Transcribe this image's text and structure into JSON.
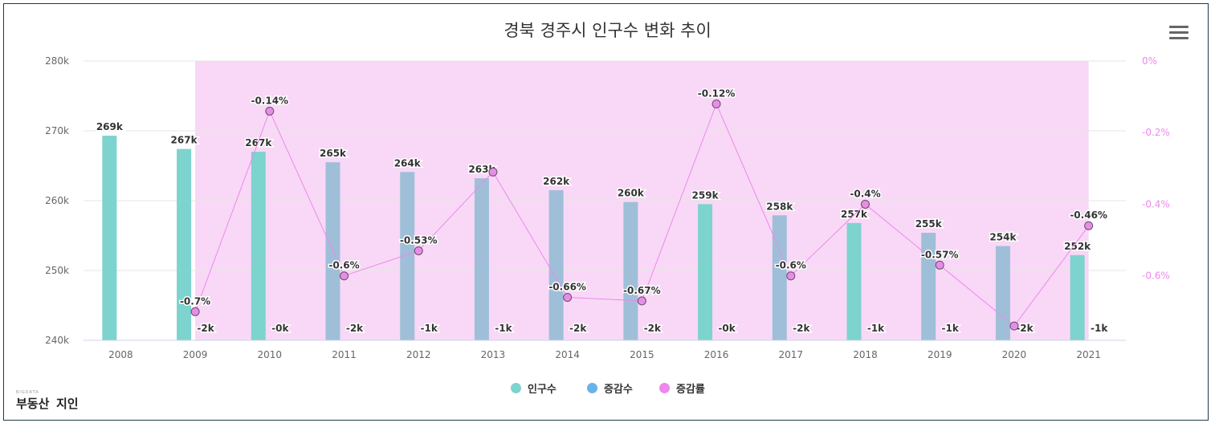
{
  "title": "경북 경주시 인구수 변화 추이",
  "menu_icon": "hamburger-menu-icon",
  "logo": {
    "small": "BIGDATA",
    "text": "부동산",
    "brand": "지인"
  },
  "legend": [
    {
      "label": "인구수",
      "color": "#7dd3cd"
    },
    {
      "label": "증감수",
      "color": "#6ab3e8"
    },
    {
      "label": "증감률",
      "color": "#ee88ee"
    }
  ],
  "chart_data": {
    "type": "bar",
    "title": "경북 경주시 인구수 변화 추이",
    "categories": [
      "2008",
      "2009",
      "2010",
      "2011",
      "2012",
      "2013",
      "2014",
      "2015",
      "2016",
      "2017",
      "2018",
      "2019",
      "2020",
      "2021"
    ],
    "y_left": {
      "ticks": [
        "240k",
        "250k",
        "260k",
        "270k",
        "280k"
      ],
      "range": [
        240,
        280
      ],
      "unit": "k"
    },
    "y_right": {
      "ticks": [
        "0%",
        "-0.2%",
        "-0.4%",
        "-0.6%"
      ],
      "range": [
        -0.78,
        0
      ]
    },
    "grid": true,
    "legend_position": "bottom-center",
    "series": [
      {
        "name": "인구수",
        "type": "bar",
        "values": [
          269.3,
          267.4,
          267.0,
          265.5,
          264.1,
          263.2,
          261.5,
          259.8,
          259.5,
          257.9,
          256.8,
          255.4,
          253.5,
          252.2
        ],
        "labels": [
          "269k",
          "267k",
          "267k",
          "265k",
          "264k",
          "263k",
          "262k",
          "260k",
          "259k",
          "258k",
          "257k",
          "255k",
          "254k",
          "252k"
        ],
        "bar_colors": [
          "#7dd3cd",
          "#7dd3cd",
          "#7dd3cd",
          "#9fbfd8",
          "#9fbfd8",
          "#9fbfd8",
          "#9fbfd8",
          "#9fbfd8",
          "#7dd3cd",
          "#9fbfd8",
          "#7dd3cd",
          "#9fbfd8",
          "#9fbfd8",
          "#7dd3cd"
        ]
      },
      {
        "name": "증감수",
        "type": "bar",
        "labels": [
          null,
          "-2k",
          "-0k",
          "-2k",
          "-1k",
          "-1k",
          "-2k",
          "-2k",
          "-0k",
          "-2k",
          "-1k",
          "-1k",
          "-2k",
          "-1k"
        ]
      },
      {
        "name": "증감률",
        "type": "line",
        "values": [
          null,
          -0.7,
          -0.14,
          -0.6,
          -0.53,
          -0.31,
          -0.66,
          -0.67,
          -0.12,
          -0.6,
          -0.4,
          -0.57,
          -0.74,
          -0.46
        ],
        "labels": [
          null,
          "-0.7%",
          "-0.14%",
          "-0.6%",
          "-0.53%",
          null,
          "-0.66%",
          "-0.67%",
          "-0.12%",
          "-0.6%",
          "-0.4%",
          "-0.57%",
          null,
          "-0.46%"
        ]
      }
    ]
  }
}
